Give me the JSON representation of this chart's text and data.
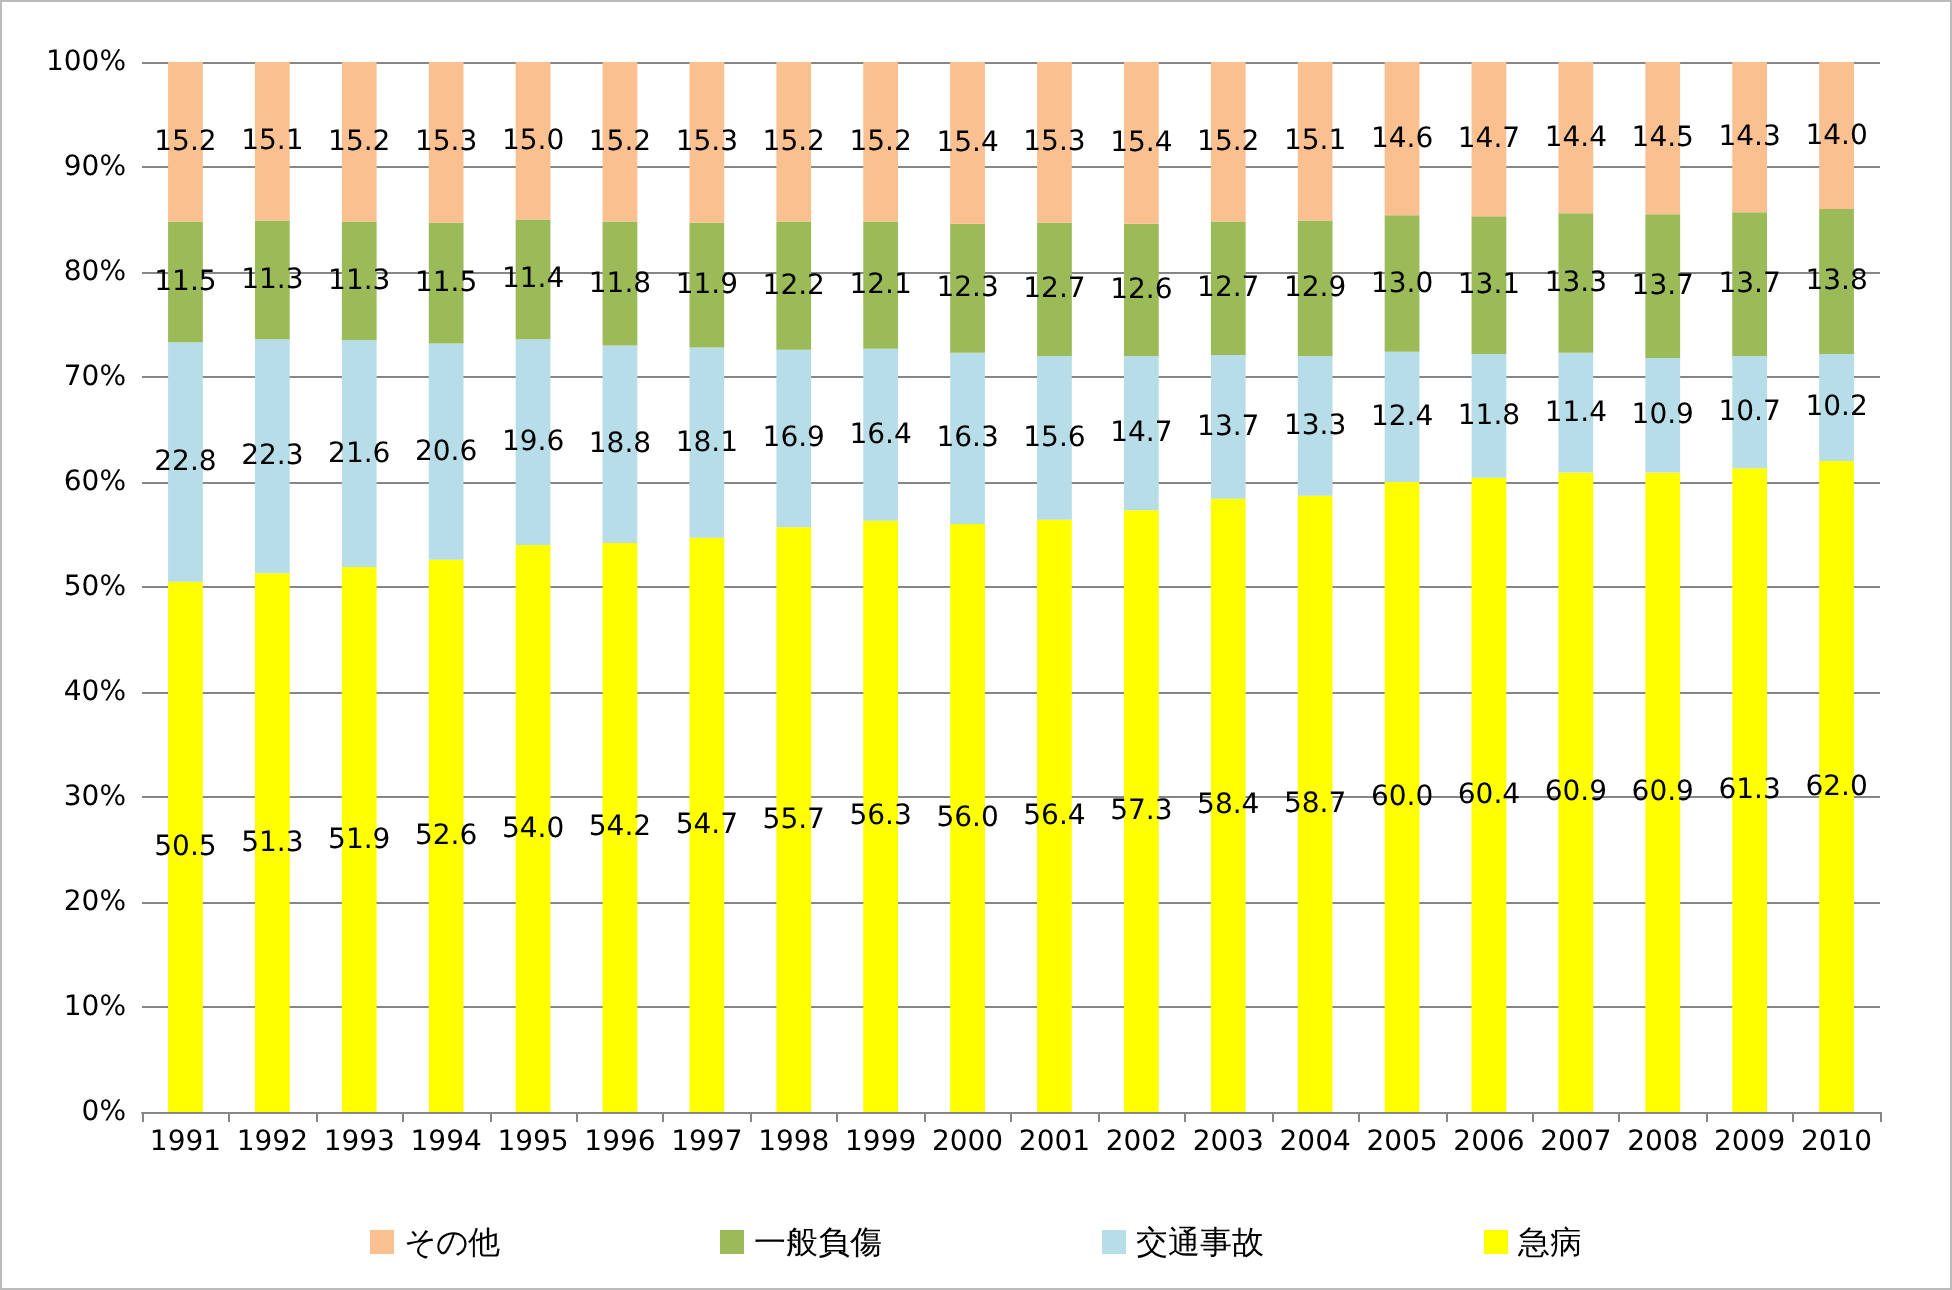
{
  "chart_data": {
    "type": "bar",
    "stacked": true,
    "categories": [
      "1991",
      "1992",
      "1993",
      "1994",
      "1995",
      "1996",
      "1997",
      "1998",
      "1999",
      "2000",
      "2001",
      "2002",
      "2003",
      "2004",
      "2005",
      "2006",
      "2007",
      "2008",
      "2009",
      "2010"
    ],
    "series": [
      {
        "name": "急病",
        "color": "#ffff00",
        "values": [
          50.5,
          51.3,
          51.9,
          52.6,
          54.0,
          54.2,
          54.7,
          55.7,
          56.3,
          56.0,
          56.4,
          57.3,
          58.4,
          58.7,
          60.0,
          60.4,
          60.9,
          60.9,
          61.3,
          62.0
        ],
        "value_labels": [
          "50.5",
          "51.3",
          "51.9",
          "52.6",
          "54.0",
          "54.2",
          "54.7",
          "55.7",
          "56.3",
          "56.0",
          "56.4",
          "57.3",
          "58.4",
          "58.7",
          "60.0",
          "60.4",
          "60.9",
          "60.9",
          "61.3",
          "62.0"
        ]
      },
      {
        "name": "交通事故",
        "color": "#b7dee8",
        "values": [
          22.8,
          22.3,
          21.6,
          20.6,
          19.6,
          18.8,
          18.1,
          16.9,
          16.4,
          16.3,
          15.6,
          14.7,
          13.7,
          13.3,
          12.4,
          11.8,
          11.4,
          10.9,
          10.7,
          10.2
        ],
        "value_labels": [
          "22.8",
          "22.3",
          "21.6",
          "20.6",
          "19.6",
          "18.8",
          "18.1",
          "16.9",
          "16.4",
          "16.3",
          "15.6",
          "14.7",
          "13.7",
          "13.3",
          "12.4",
          "11.8",
          "11.4",
          "10.9",
          "10.7",
          "10.2"
        ]
      },
      {
        "name": "一般負傷",
        "color": "#9bbb59",
        "values": [
          11.5,
          11.3,
          11.3,
          11.5,
          11.4,
          11.8,
          11.9,
          12.2,
          12.1,
          12.3,
          12.7,
          12.6,
          12.7,
          12.9,
          13.0,
          13.1,
          13.3,
          13.7,
          13.7,
          13.8
        ],
        "value_labels": [
          "11.5",
          "11.3",
          "11.3",
          "11.5",
          "11.4",
          "11.8",
          "11.9",
          "12.2",
          "12.1",
          "12.3",
          "12.7",
          "12.6",
          "12.7",
          "12.9",
          "13.0",
          "13.1",
          "13.3",
          "13.7",
          "13.7",
          "13.8"
        ]
      },
      {
        "name": "その他",
        "color": "#fac090",
        "values": [
          15.2,
          15.1,
          15.2,
          15.3,
          15.0,
          15.2,
          15.3,
          15.2,
          15.2,
          15.4,
          15.3,
          15.4,
          15.2,
          15.1,
          14.6,
          14.7,
          14.4,
          14.5,
          14.3,
          14.0
        ],
        "value_labels": [
          "15.2",
          "15.1",
          "15.2",
          "15.3",
          "15.0",
          "15.2",
          "15.3",
          "15.2",
          "15.2",
          "15.4",
          "15.3",
          "15.4",
          "15.2",
          "15.1",
          "14.6",
          "14.7",
          "14.4",
          "14.5",
          "14.3",
          "14.0"
        ]
      }
    ],
    "ylim": [
      0,
      100
    ],
    "yticks": [
      {
        "value": 0,
        "label": "0%"
      },
      {
        "value": 10,
        "label": "10%"
      },
      {
        "value": 20,
        "label": "20%"
      },
      {
        "value": 30,
        "label": "30%"
      },
      {
        "value": 40,
        "label": "40%"
      },
      {
        "value": 50,
        "label": "50%"
      },
      {
        "value": 60,
        "label": "60%"
      },
      {
        "value": 70,
        "label": "70%"
      },
      {
        "value": 80,
        "label": "80%"
      },
      {
        "value": 90,
        "label": "90%"
      },
      {
        "value": 100,
        "label": "100%"
      }
    ],
    "grid": "y",
    "legend": "bottom"
  }
}
